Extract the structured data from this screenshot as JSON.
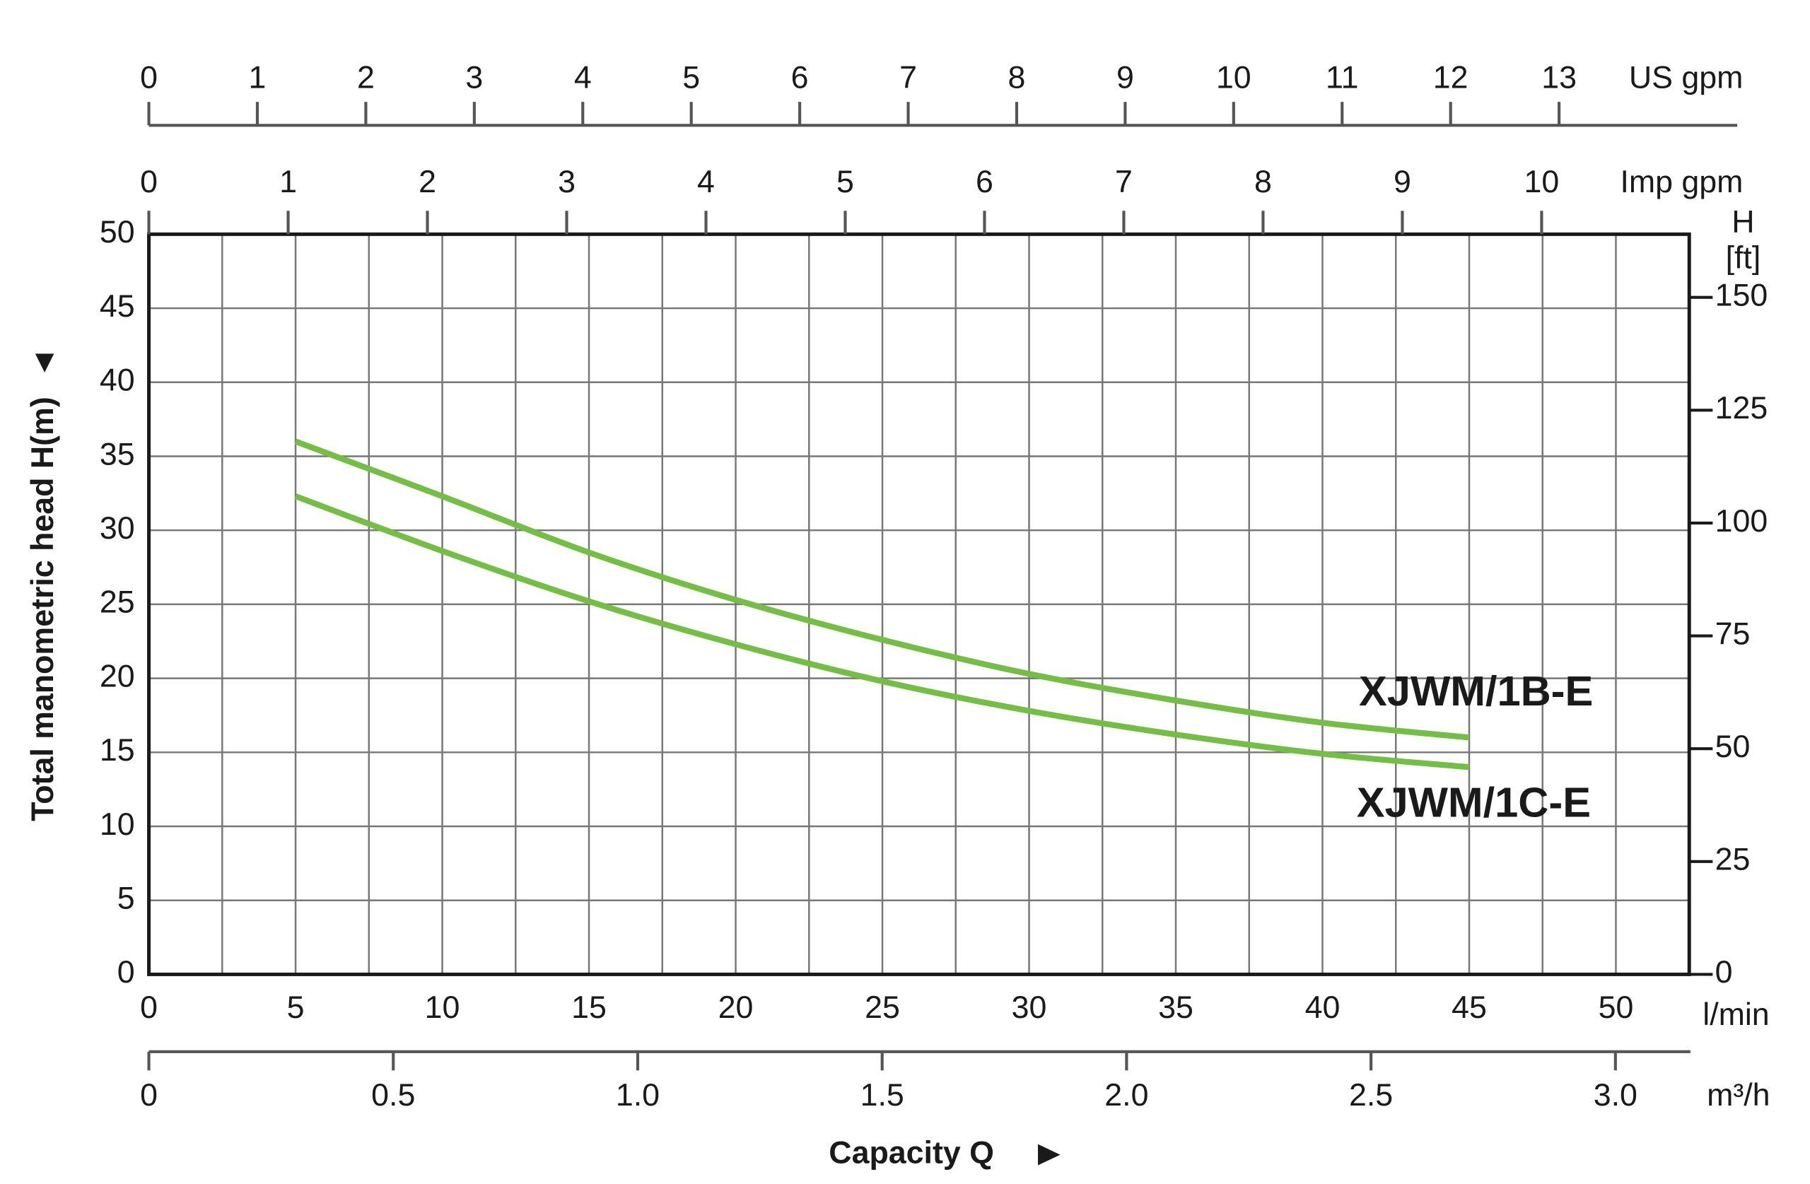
{
  "chart_data": {
    "type": "line",
    "ylabel": "Total manometric head H(m)",
    "xlabel": "Capacity Q",
    "xunit": "l/min",
    "x": [
      5,
      10,
      15,
      20,
      25,
      30,
      35,
      40,
      45
    ],
    "series": [
      {
        "name": "XJWM/1B-E",
        "color": "#72bf44",
        "values": [
          36,
          32.3,
          28.5,
          25.3,
          22.6,
          20.3,
          18.5,
          17,
          16
        ]
      },
      {
        "name": "XJWM/1C-E",
        "color": "#72bf44",
        "values": [
          32.3,
          28.6,
          25.2,
          22.3,
          19.8,
          17.8,
          16.2,
          14.9,
          14.0
        ]
      }
    ],
    "xlim": [
      0,
      52.5
    ],
    "ylim": [
      0,
      50
    ],
    "xticks": [
      0,
      5,
      10,
      15,
      20,
      25,
      30,
      35,
      40,
      45,
      50
    ],
    "yticks": [
      0,
      5,
      10,
      15,
      20,
      25,
      30,
      35,
      40,
      45,
      50
    ],
    "xgrid": [
      2.5,
      5,
      7.5,
      10,
      12.5,
      15,
      17.5,
      20,
      22.5,
      25,
      27.5,
      30,
      32.5,
      35,
      37.5,
      40,
      42.5,
      45,
      47.5,
      50
    ],
    "grid": true,
    "top_axes": [
      {
        "unit": "US gpm",
        "lim": [
          0,
          14.2
        ],
        "ticks": [
          0,
          1,
          2,
          3,
          4,
          5,
          6,
          7,
          8,
          9,
          10,
          11,
          12,
          13
        ]
      },
      {
        "unit": "Imp gpm",
        "lim": [
          0,
          11.06
        ],
        "ticks": [
          0,
          1,
          2,
          3,
          4,
          5,
          6,
          7,
          8,
          9,
          10
        ]
      }
    ],
    "bottom_axis": {
      "unit": "m³/h",
      "lim": [
        0,
        3.151
      ],
      "ticks": [
        0,
        0.5,
        {
          "value": 1,
          "label": "1.0"
        },
        1.5,
        {
          "value": 2,
          "label": "2.0"
        },
        2.5,
        {
          "value": 3,
          "label": "3.0"
        }
      ]
    },
    "y2label": [
      "H",
      "[ft]"
    ],
    "y2lim": [
      0,
      164.0
    ],
    "y2ticks": [
      0,
      25,
      50,
      75,
      100,
      125,
      150
    ]
  }
}
